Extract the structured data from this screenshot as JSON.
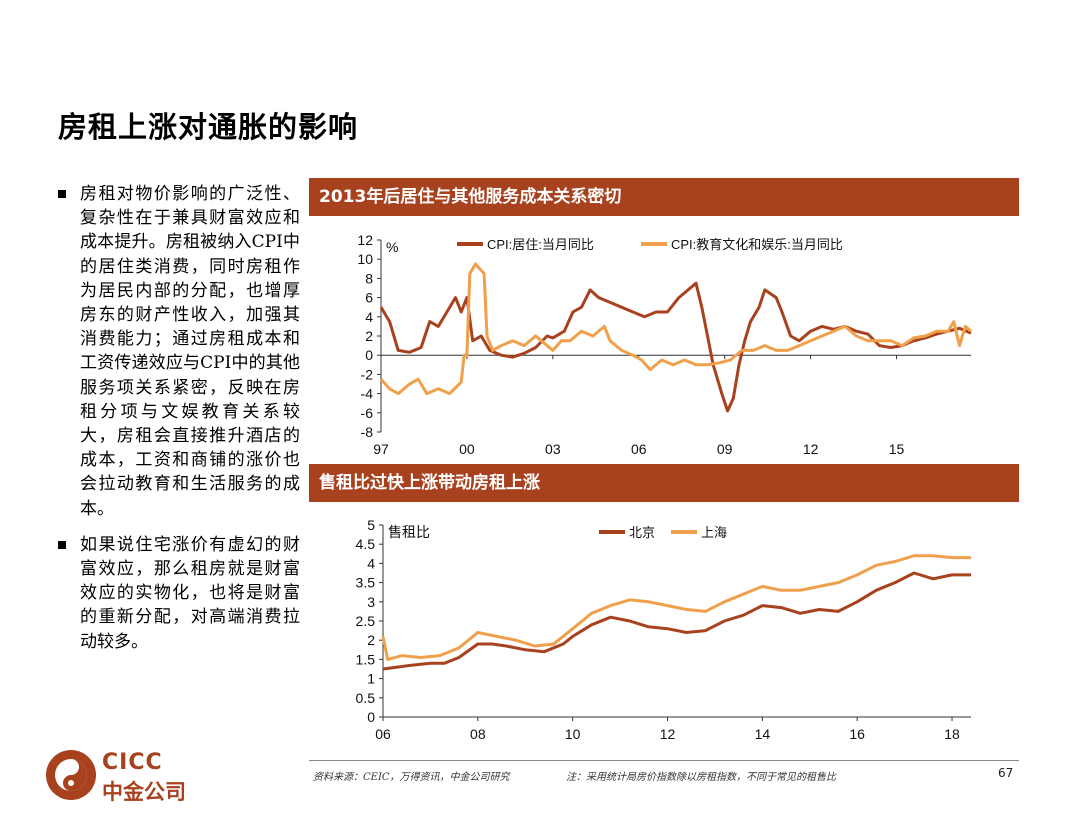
{
  "title": "房租上涨对通胀的影响",
  "bullets": [
    "房租对物价影响的广泛性、复杂性在于兼具财富效应和成本提升。房租被纳入CPI中的居住类消费，同时房租作为居民内部的分配，也增厚房东的财产性收入，加强其消费能力；通过房租成本和工资传递效应与CPI中的其他服务项关系紧密，反映在房租分项与文娱教育关系较大，房租会直接推升酒店的成本，工资和商铺的涨价也会拉动教育和生活服务的成本。",
    "如果说住宅涨价有虚幻的财富效应，那么租房就是财富效应的实物化，也将是财富的重新分配，对高端消费拉动较多。"
  ],
  "panel1_title": "2013年后居住与其他服务成本关系密切",
  "panel2_title": "售租比过快上涨带动房租上涨",
  "footer": {
    "source": "资料来源：CEIC，万得资讯，中金公司研究",
    "note": "注：采用统计局房价指数除以房租指数，不同于常见的租售比",
    "page": "67"
  },
  "logo": {
    "en": "CICC",
    "zh": "中金公司"
  },
  "colors": {
    "accent": "#a8411e",
    "series_dark": "#a8411e",
    "series_light": "#f0a04b"
  },
  "chart_data": [
    {
      "type": "line",
      "title": "2013年后居住与其他服务成本关系密切",
      "unit_label": "%",
      "ylim": [
        -8,
        12
      ],
      "yticks": [
        12,
        10,
        8,
        6,
        4,
        2,
        0,
        -2,
        -4,
        -6,
        -8
      ],
      "xlim": [
        1997,
        2017.6
      ],
      "xticks": [
        {
          "v": 1997,
          "l": "97"
        },
        {
          "v": 2000,
          "l": "00"
        },
        {
          "v": 2003,
          "l": "03"
        },
        {
          "v": 2006,
          "l": "06"
        },
        {
          "v": 2009,
          "l": "09"
        },
        {
          "v": 2012,
          "l": "12"
        },
        {
          "v": 2015,
          "l": "15"
        }
      ],
      "legend": "top",
      "series": [
        {
          "name": "CPI:居住:当月同比",
          "color": "#a8411e",
          "points": [
            [
              1997.0,
              5.0
            ],
            [
              1997.3,
              3.5
            ],
            [
              1997.6,
              0.5
            ],
            [
              1998.0,
              0.3
            ],
            [
              1998.4,
              0.8
            ],
            [
              1998.7,
              3.5
            ],
            [
              1999.0,
              3.0
            ],
            [
              1999.3,
              4.5
            ],
            [
              1999.6,
              6.0
            ],
            [
              1999.8,
              4.5
            ],
            [
              2000.0,
              6.0
            ],
            [
              2000.2,
              1.5
            ],
            [
              2000.5,
              2.0
            ],
            [
              2000.8,
              0.5
            ],
            [
              2001.2,
              0.0
            ],
            [
              2001.6,
              -0.2
            ],
            [
              2002.0,
              0.2
            ],
            [
              2002.4,
              0.8
            ],
            [
              2002.8,
              2.0
            ],
            [
              2003.0,
              1.8
            ],
            [
              2003.4,
              2.5
            ],
            [
              2003.7,
              4.5
            ],
            [
              2004.0,
              5.0
            ],
            [
              2004.3,
              6.8
            ],
            [
              2004.6,
              6.0
            ],
            [
              2005.0,
              5.5
            ],
            [
              2005.4,
              5.0
            ],
            [
              2005.8,
              4.5
            ],
            [
              2006.2,
              4.0
            ],
            [
              2006.6,
              4.5
            ],
            [
              2007.0,
              4.5
            ],
            [
              2007.4,
              6.0
            ],
            [
              2007.8,
              7.0
            ],
            [
              2008.0,
              7.5
            ],
            [
              2008.2,
              5.0
            ],
            [
              2008.4,
              2.0
            ],
            [
              2008.6,
              -1.0
            ],
            [
              2008.9,
              -4.0
            ],
            [
              2009.1,
              -5.8
            ],
            [
              2009.3,
              -4.5
            ],
            [
              2009.5,
              -1.0
            ],
            [
              2009.7,
              1.5
            ],
            [
              2009.9,
              3.5
            ],
            [
              2010.2,
              5.0
            ],
            [
              2010.4,
              6.8
            ],
            [
              2010.8,
              6.0
            ],
            [
              2011.0,
              4.5
            ],
            [
              2011.3,
              2.0
            ],
            [
              2011.6,
              1.5
            ],
            [
              2012.0,
              2.5
            ],
            [
              2012.4,
              3.0
            ],
            [
              2012.8,
              2.7
            ],
            [
              2013.2,
              3.0
            ],
            [
              2013.6,
              2.5
            ],
            [
              2014.0,
              2.2
            ],
            [
              2014.4,
              1.0
            ],
            [
              2014.8,
              0.8
            ],
            [
              2015.2,
              1.0
            ],
            [
              2015.6,
              1.5
            ],
            [
              2016.0,
              1.8
            ],
            [
              2016.4,
              2.2
            ],
            [
              2016.8,
              2.5
            ],
            [
              2017.2,
              2.8
            ],
            [
              2017.6,
              2.3
            ]
          ]
        },
        {
          "name": "CPI:教育文化和娱乐:当月同比",
          "color": "#f0a04b",
          "points": [
            [
              1997.0,
              -2.5
            ],
            [
              1997.3,
              -3.5
            ],
            [
              1997.6,
              -4.0
            ],
            [
              1998.0,
              -3.0
            ],
            [
              1998.3,
              -2.5
            ],
            [
              1998.6,
              -4.0
            ],
            [
              1999.0,
              -3.5
            ],
            [
              1999.4,
              -4.0
            ],
            [
              1999.8,
              -2.8
            ],
            [
              1999.9,
              0.0
            ],
            [
              2000.0,
              0.0
            ],
            [
              2000.1,
              8.5
            ],
            [
              2000.3,
              9.5
            ],
            [
              2000.6,
              8.5
            ],
            [
              2000.7,
              2.0
            ],
            [
              2000.9,
              0.5
            ],
            [
              2001.2,
              1.0
            ],
            [
              2001.6,
              1.5
            ],
            [
              2002.0,
              1.0
            ],
            [
              2002.4,
              2.0
            ],
            [
              2002.8,
              1.0
            ],
            [
              2003.0,
              0.5
            ],
            [
              2003.3,
              1.5
            ],
            [
              2003.6,
              1.5
            ],
            [
              2004.0,
              2.5
            ],
            [
              2004.4,
              2.0
            ],
            [
              2004.8,
              3.0
            ],
            [
              2005.0,
              1.5
            ],
            [
              2005.4,
              0.5
            ],
            [
              2005.8,
              0.0
            ],
            [
              2006.1,
              -0.5
            ],
            [
              2006.4,
              -1.5
            ],
            [
              2006.8,
              -0.5
            ],
            [
              2007.2,
              -1.0
            ],
            [
              2007.6,
              -0.5
            ],
            [
              2008.0,
              -1.0
            ],
            [
              2008.4,
              -1.0
            ],
            [
              2008.8,
              -0.8
            ],
            [
              2009.2,
              -0.5
            ],
            [
              2009.6,
              0.5
            ],
            [
              2010.0,
              0.5
            ],
            [
              2010.4,
              1.0
            ],
            [
              2010.8,
              0.5
            ],
            [
              2011.2,
              0.5
            ],
            [
              2011.6,
              1.0
            ],
            [
              2012.0,
              1.5
            ],
            [
              2012.4,
              2.0
            ],
            [
              2012.8,
              2.5
            ],
            [
              2013.2,
              3.0
            ],
            [
              2013.6,
              2.0
            ],
            [
              2014.0,
              1.5
            ],
            [
              2014.4,
              1.5
            ],
            [
              2014.8,
              1.5
            ],
            [
              2015.2,
              1.0
            ],
            [
              2015.6,
              1.8
            ],
            [
              2016.0,
              2.0
            ],
            [
              2016.4,
              2.5
            ],
            [
              2016.8,
              2.5
            ],
            [
              2017.0,
              3.5
            ],
            [
              2017.2,
              1.0
            ],
            [
              2017.4,
              3.0
            ],
            [
              2017.6,
              2.5
            ]
          ]
        }
      ]
    },
    {
      "type": "line",
      "title": "售租比过快上涨带动房租上涨",
      "unit_label": "售租比",
      "ylim": [
        0,
        5
      ],
      "yticks": [
        5.0,
        4.5,
        4.0,
        3.5,
        3.0,
        2.5,
        2.0,
        1.5,
        1.0,
        0.5,
        0.0
      ],
      "xlim": [
        2006,
        2018.4
      ],
      "xticks": [
        {
          "v": 2006,
          "l": "06"
        },
        {
          "v": 2008,
          "l": "08"
        },
        {
          "v": 2010,
          "l": "10"
        },
        {
          "v": 2012,
          "l": "12"
        },
        {
          "v": 2014,
          "l": "14"
        },
        {
          "v": 2016,
          "l": "16"
        },
        {
          "v": 2018,
          "l": "18"
        }
      ],
      "legend": "top",
      "series": [
        {
          "name": "北京",
          "color": "#a8411e",
          "points": [
            [
              2006.0,
              1.25
            ],
            [
              2006.3,
              1.3
            ],
            [
              2006.6,
              1.35
            ],
            [
              2007.0,
              1.4
            ],
            [
              2007.3,
              1.4
            ],
            [
              2007.6,
              1.55
            ],
            [
              2008.0,
              1.9
            ],
            [
              2008.3,
              1.9
            ],
            [
              2008.6,
              1.85
            ],
            [
              2009.0,
              1.75
            ],
            [
              2009.4,
              1.7
            ],
            [
              2009.8,
              1.9
            ],
            [
              2010.0,
              2.1
            ],
            [
              2010.4,
              2.4
            ],
            [
              2010.8,
              2.6
            ],
            [
              2011.2,
              2.5
            ],
            [
              2011.6,
              2.35
            ],
            [
              2012.0,
              2.3
            ],
            [
              2012.4,
              2.2
            ],
            [
              2012.8,
              2.25
            ],
            [
              2013.2,
              2.5
            ],
            [
              2013.6,
              2.65
            ],
            [
              2014.0,
              2.9
            ],
            [
              2014.4,
              2.85
            ],
            [
              2014.8,
              2.7
            ],
            [
              2015.2,
              2.8
            ],
            [
              2015.6,
              2.75
            ],
            [
              2016.0,
              3.0
            ],
            [
              2016.4,
              3.3
            ],
            [
              2016.8,
              3.5
            ],
            [
              2017.2,
              3.75
            ],
            [
              2017.6,
              3.6
            ],
            [
              2018.0,
              3.7
            ],
            [
              2018.4,
              3.7
            ]
          ]
        },
        {
          "name": "上海",
          "color": "#f0a04b",
          "points": [
            [
              2006.0,
              2.1
            ],
            [
              2006.1,
              1.5
            ],
            [
              2006.4,
              1.6
            ],
            [
              2006.8,
              1.55
            ],
            [
              2007.2,
              1.6
            ],
            [
              2007.6,
              1.8
            ],
            [
              2008.0,
              2.2
            ],
            [
              2008.4,
              2.1
            ],
            [
              2008.8,
              2.0
            ],
            [
              2009.2,
              1.85
            ],
            [
              2009.6,
              1.9
            ],
            [
              2010.0,
              2.3
            ],
            [
              2010.4,
              2.7
            ],
            [
              2010.8,
              2.9
            ],
            [
              2011.2,
              3.05
            ],
            [
              2011.6,
              3.0
            ],
            [
              2012.0,
              2.9
            ],
            [
              2012.4,
              2.8
            ],
            [
              2012.8,
              2.75
            ],
            [
              2013.2,
              3.0
            ],
            [
              2013.6,
              3.2
            ],
            [
              2014.0,
              3.4
            ],
            [
              2014.4,
              3.3
            ],
            [
              2014.8,
              3.3
            ],
            [
              2015.2,
              3.4
            ],
            [
              2015.6,
              3.5
            ],
            [
              2016.0,
              3.7
            ],
            [
              2016.4,
              3.95
            ],
            [
              2016.8,
              4.05
            ],
            [
              2017.2,
              4.2
            ],
            [
              2017.6,
              4.2
            ],
            [
              2018.0,
              4.15
            ],
            [
              2018.4,
              4.15
            ]
          ]
        }
      ]
    }
  ]
}
